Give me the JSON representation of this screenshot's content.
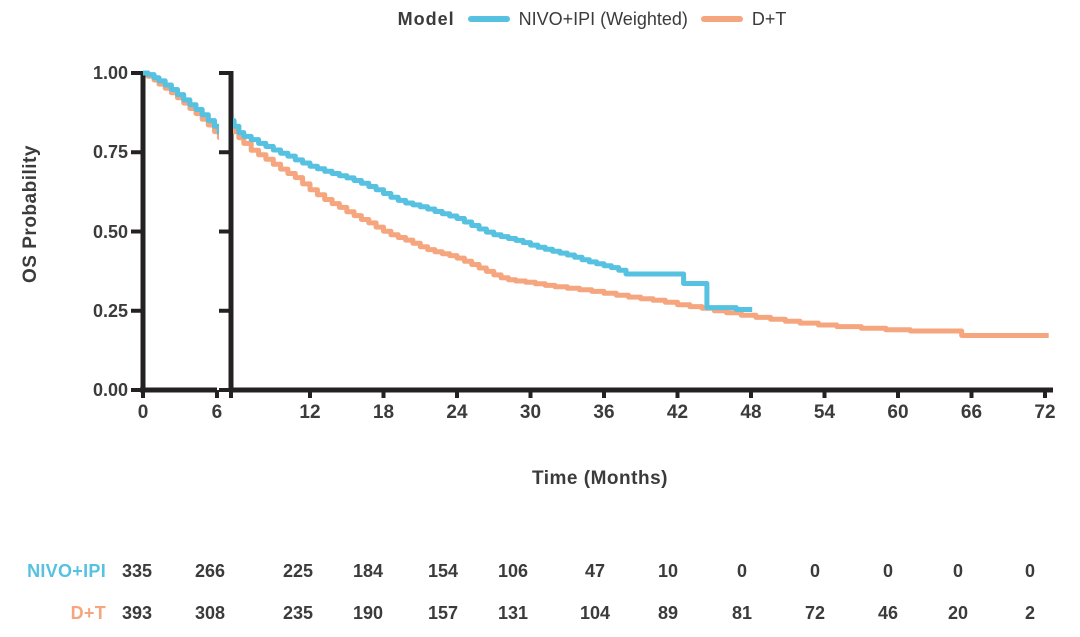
{
  "chart_data": {
    "type": "line",
    "subtype": "kaplan-meier-step",
    "legend_title": "Model",
    "xlabel": "Time (Months)",
    "ylabel": "OS Probability",
    "axis_color": "#242122",
    "text_color": "#3b3b3b",
    "ylim": [
      0,
      1
    ],
    "x_break_between_months": [
      6,
      7
    ],
    "x_ticks": [
      0,
      6,
      12,
      18,
      24,
      30,
      36,
      42,
      48,
      54,
      60,
      66,
      72
    ],
    "y_ticks": [
      {
        "label": "1.00",
        "value": 1.0
      },
      {
        "label": "0.75",
        "value": 0.75
      },
      {
        "label": "0.50",
        "value": 0.5
      },
      {
        "label": "0.25",
        "value": 0.25
      },
      {
        "label": "0.00",
        "value": 0.0
      }
    ],
    "series": [
      {
        "name": "NIVO+IPI (Weighted)",
        "color": "#56c1e0",
        "points": [
          [
            0,
            1.0
          ],
          [
            0.4,
            0.995
          ],
          [
            0.9,
            0.985
          ],
          [
            1.3,
            0.975
          ],
          [
            1.8,
            0.962
          ],
          [
            2.3,
            0.948
          ],
          [
            2.8,
            0.932
          ],
          [
            3.3,
            0.915
          ],
          [
            3.8,
            0.9
          ],
          [
            4.3,
            0.885
          ],
          [
            4.8,
            0.868
          ],
          [
            5.3,
            0.85
          ],
          [
            5.8,
            0.832
          ],
          [
            6.2,
            0.812
          ],
          [
            6.6,
            0.8
          ],
          [
            7.2,
            0.79
          ],
          [
            7.8,
            0.778
          ],
          [
            8.4,
            0.768
          ],
          [
            9.0,
            0.757
          ],
          [
            9.6,
            0.747
          ],
          [
            10.2,
            0.738
          ],
          [
            10.8,
            0.726
          ],
          [
            11.4,
            0.716
          ],
          [
            12.0,
            0.706
          ],
          [
            12.6,
            0.698
          ],
          [
            13.2,
            0.69
          ],
          [
            13.8,
            0.683
          ],
          [
            14.4,
            0.676
          ],
          [
            15.0,
            0.669
          ],
          [
            15.6,
            0.661
          ],
          [
            16.2,
            0.652
          ],
          [
            16.8,
            0.642
          ],
          [
            17.4,
            0.632
          ],
          [
            18.0,
            0.62
          ],
          [
            18.6,
            0.608
          ],
          [
            19.2,
            0.598
          ],
          [
            19.8,
            0.59
          ],
          [
            20.4,
            0.584
          ],
          [
            21.0,
            0.578
          ],
          [
            21.6,
            0.571
          ],
          [
            22.2,
            0.563
          ],
          [
            22.8,
            0.556
          ],
          [
            23.4,
            0.549
          ],
          [
            24.0,
            0.541
          ],
          [
            24.6,
            0.53
          ],
          [
            25.2,
            0.519
          ],
          [
            25.8,
            0.508
          ],
          [
            26.4,
            0.498
          ],
          [
            27.0,
            0.49
          ],
          [
            27.6,
            0.484
          ],
          [
            28.2,
            0.478
          ],
          [
            28.8,
            0.472
          ],
          [
            29.4,
            0.465
          ],
          [
            30.0,
            0.457
          ],
          [
            30.6,
            0.45
          ],
          [
            31.2,
            0.444
          ],
          [
            31.8,
            0.438
          ],
          [
            32.4,
            0.432
          ],
          [
            33.0,
            0.426
          ],
          [
            33.6,
            0.419
          ],
          [
            34.2,
            0.411
          ],
          [
            34.8,
            0.404
          ],
          [
            35.4,
            0.398
          ],
          [
            36.0,
            0.392
          ],
          [
            36.6,
            0.386
          ],
          [
            37.2,
            0.378
          ],
          [
            37.8,
            0.366
          ],
          [
            42.5,
            0.336
          ],
          [
            44.4,
            0.26
          ],
          [
            46.8,
            0.254
          ],
          [
            48.1,
            0.254
          ]
        ]
      },
      {
        "name": "D+T",
        "color": "#f5a67e",
        "points": [
          [
            0,
            1.0
          ],
          [
            0.4,
            0.99
          ],
          [
            0.9,
            0.978
          ],
          [
            1.3,
            0.965
          ],
          [
            1.8,
            0.952
          ],
          [
            2.3,
            0.938
          ],
          [
            2.8,
            0.922
          ],
          [
            3.3,
            0.905
          ],
          [
            3.8,
            0.888
          ],
          [
            4.3,
            0.872
          ],
          [
            4.8,
            0.854
          ],
          [
            5.3,
            0.836
          ],
          [
            5.8,
            0.815
          ],
          [
            6.2,
            0.796
          ],
          [
            6.6,
            0.778
          ],
          [
            7.2,
            0.756
          ],
          [
            7.8,
            0.742
          ],
          [
            8.4,
            0.728
          ],
          [
            9.0,
            0.712
          ],
          [
            9.6,
            0.697
          ],
          [
            10.2,
            0.683
          ],
          [
            10.8,
            0.67
          ],
          [
            11.4,
            0.65
          ],
          [
            12.0,
            0.632
          ],
          [
            12.6,
            0.616
          ],
          [
            13.2,
            0.601
          ],
          [
            13.8,
            0.588
          ],
          [
            14.4,
            0.576
          ],
          [
            15.0,
            0.562
          ],
          [
            15.6,
            0.55
          ],
          [
            16.2,
            0.538
          ],
          [
            16.8,
            0.527
          ],
          [
            17.4,
            0.514
          ],
          [
            18.0,
            0.501
          ],
          [
            18.6,
            0.49
          ],
          [
            19.2,
            0.481
          ],
          [
            19.8,
            0.473
          ],
          [
            20.4,
            0.463
          ],
          [
            21.0,
            0.452
          ],
          [
            21.6,
            0.443
          ],
          [
            22.2,
            0.436
          ],
          [
            22.8,
            0.43
          ],
          [
            23.4,
            0.424
          ],
          [
            24.0,
            0.416
          ],
          [
            24.6,
            0.406
          ],
          [
            25.2,
            0.396
          ],
          [
            25.8,
            0.385
          ],
          [
            26.4,
            0.374
          ],
          [
            27.0,
            0.363
          ],
          [
            27.6,
            0.354
          ],
          [
            28.2,
            0.348
          ],
          [
            28.8,
            0.344
          ],
          [
            29.6,
            0.34
          ],
          [
            30.4,
            0.335
          ],
          [
            31.2,
            0.33
          ],
          [
            32.0,
            0.326
          ],
          [
            33.0,
            0.321
          ],
          [
            34.0,
            0.316
          ],
          [
            35.0,
            0.311
          ],
          [
            36.0,
            0.305
          ],
          [
            37.0,
            0.299
          ],
          [
            38.0,
            0.293
          ],
          [
            39.0,
            0.288
          ],
          [
            40.0,
            0.283
          ],
          [
            41.0,
            0.277
          ],
          [
            42.0,
            0.269
          ],
          [
            43.0,
            0.263
          ],
          [
            44.0,
            0.258
          ],
          [
            45.0,
            0.25
          ],
          [
            46.0,
            0.244
          ],
          [
            47.2,
            0.236
          ],
          [
            48.4,
            0.229
          ],
          [
            49.6,
            0.223
          ],
          [
            50.8,
            0.217
          ],
          [
            52.0,
            0.211
          ],
          [
            53.5,
            0.205
          ],
          [
            55.0,
            0.2
          ],
          [
            57.0,
            0.195
          ],
          [
            59.0,
            0.19
          ],
          [
            61.0,
            0.186
          ],
          [
            65.2,
            0.172
          ],
          [
            72.3,
            0.172
          ]
        ]
      }
    ]
  },
  "risk_table": {
    "rows": [
      {
        "label": "NIVO+IPI",
        "color": "#56c1e0",
        "counts": [
          335,
          266,
          225,
          184,
          154,
          106,
          47,
          10,
          0,
          0,
          0,
          0,
          0
        ]
      },
      {
        "label": "D+T",
        "color": "#f5a67e",
        "counts": [
          393,
          308,
          235,
          190,
          157,
          131,
          104,
          89,
          81,
          72,
          46,
          20,
          2
        ]
      }
    ]
  }
}
